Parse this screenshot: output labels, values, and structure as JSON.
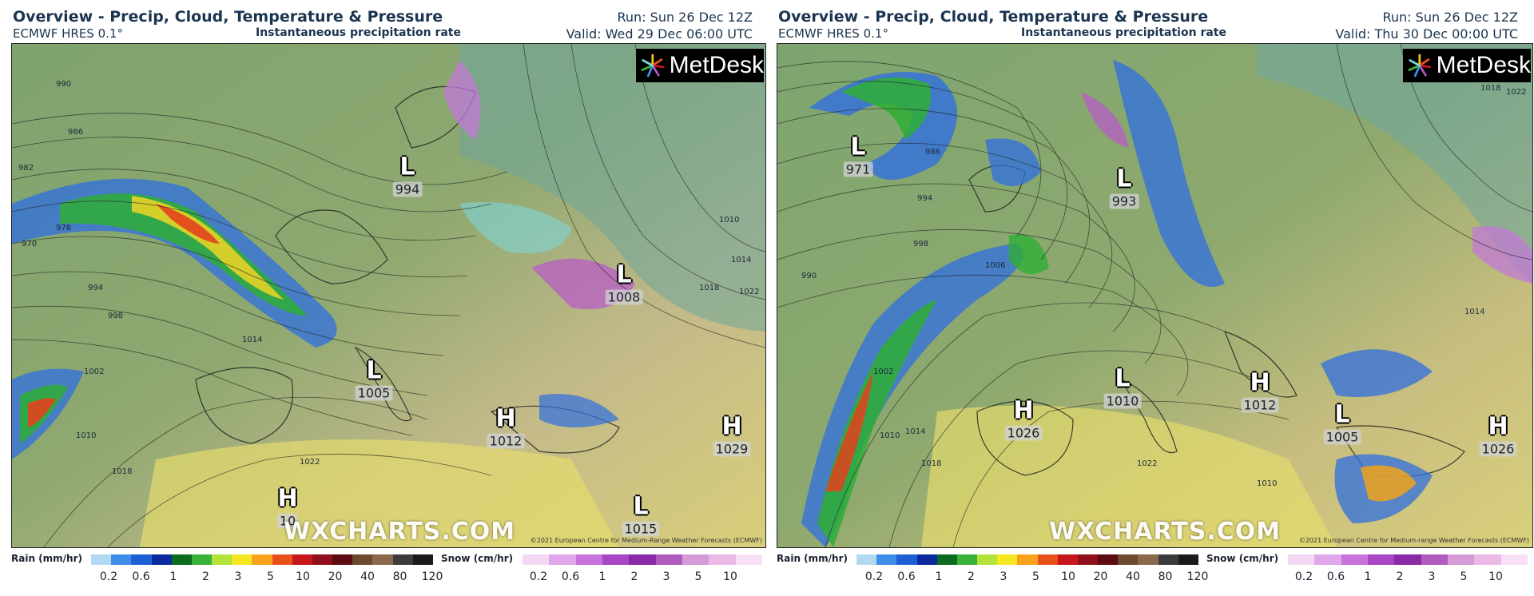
{
  "panels": [
    {
      "title": "Overview - Precip, Cloud, Temperature & Pressure",
      "run": "Run: Sun 26 Dec 12Z",
      "model": "ECMWF HRES 0.1°",
      "parameter": "Instantaneous precipitation rate",
      "valid": "Valid: Wed 29 Dec 06:00 UTC",
      "logo": "MetDesk",
      "watermark": "WXCHARTS.COM",
      "copyright": "©2021 European Centre for Medium-Range Weather Forecasts (ECMWF)",
      "pressure_centers": [
        {
          "symbol": "L",
          "value": "994"
        },
        {
          "symbol": "L",
          "value": "1008"
        },
        {
          "symbol": "L",
          "value": "1005"
        },
        {
          "symbol": "H",
          "value": "1012"
        },
        {
          "symbol": "H",
          "value": "1029"
        },
        {
          "symbol": "H",
          "value": "10"
        },
        {
          "symbol": "L",
          "value": "1015"
        }
      ],
      "isobar_labels": [
        "990",
        "986",
        "982",
        "978",
        "970",
        "994",
        "998",
        "1014",
        "1010",
        "1018",
        "1022",
        "1002",
        "1010",
        "1014",
        "1018",
        "1022"
      ]
    },
    {
      "title": "Overview - Precip, Cloud, Temperature & Pressure",
      "run": "Run: Sun 26 Dec 12Z",
      "model": "ECMWF HRES 0.1°",
      "parameter": "Instantaneous precipitation rate",
      "valid": "Valid: Thu 30 Dec 00:00 UTC",
      "logo": "MetDesk",
      "watermark": "WXCHARTS.COM",
      "copyright": "©2021 European Centre for Medium-range Weather Forecasts (ECMWF)",
      "pressure_centers": [
        {
          "symbol": "L",
          "value": "971"
        },
        {
          "symbol": "L",
          "value": "993"
        },
        {
          "symbol": "H",
          "value": "1026"
        },
        {
          "symbol": "L",
          "value": "1010"
        },
        {
          "symbol": "H",
          "value": "1012"
        },
        {
          "symbol": "L",
          "value": "1005"
        },
        {
          "symbol": "H",
          "value": "1026"
        }
      ],
      "isobar_labels": [
        "986",
        "994",
        "998",
        "1006",
        "990",
        "1002",
        "1010",
        "1014",
        "1018",
        "1022",
        "1018",
        "1022",
        "1014",
        "1010"
      ]
    }
  ],
  "legend": {
    "rain_label": "Rain (mm/hr)",
    "rain_ticks": [
      "0.2",
      "0.6",
      "1",
      "2",
      "3",
      "5",
      "10",
      "20",
      "40",
      "80",
      "120"
    ],
    "rain_colors": [
      "#b3d9f2",
      "#3d8ee8",
      "#1f5fd6",
      "#0b2a9e",
      "#0b6b1e",
      "#39b23a",
      "#b3e33a",
      "#f6e61f",
      "#f7a21a",
      "#e8501b",
      "#c8161e",
      "#8f0f1b",
      "#5c0c12",
      "#6b4a2e",
      "#8a6a4a",
      "#3c3c3c",
      "#1a1a1a"
    ],
    "snow_label": "Snow (cm/hr)",
    "snow_ticks": [
      "0.2",
      "0.6",
      "1",
      "2",
      "3",
      "5",
      "10"
    ],
    "snow_colors": [
      "#f3d8f3",
      "#e0a6ea",
      "#c872dc",
      "#a846c4",
      "#8a2aa6",
      "#b05cbf",
      "#d69ad8",
      "#eab9e6",
      "#f7e0f5"
    ]
  }
}
